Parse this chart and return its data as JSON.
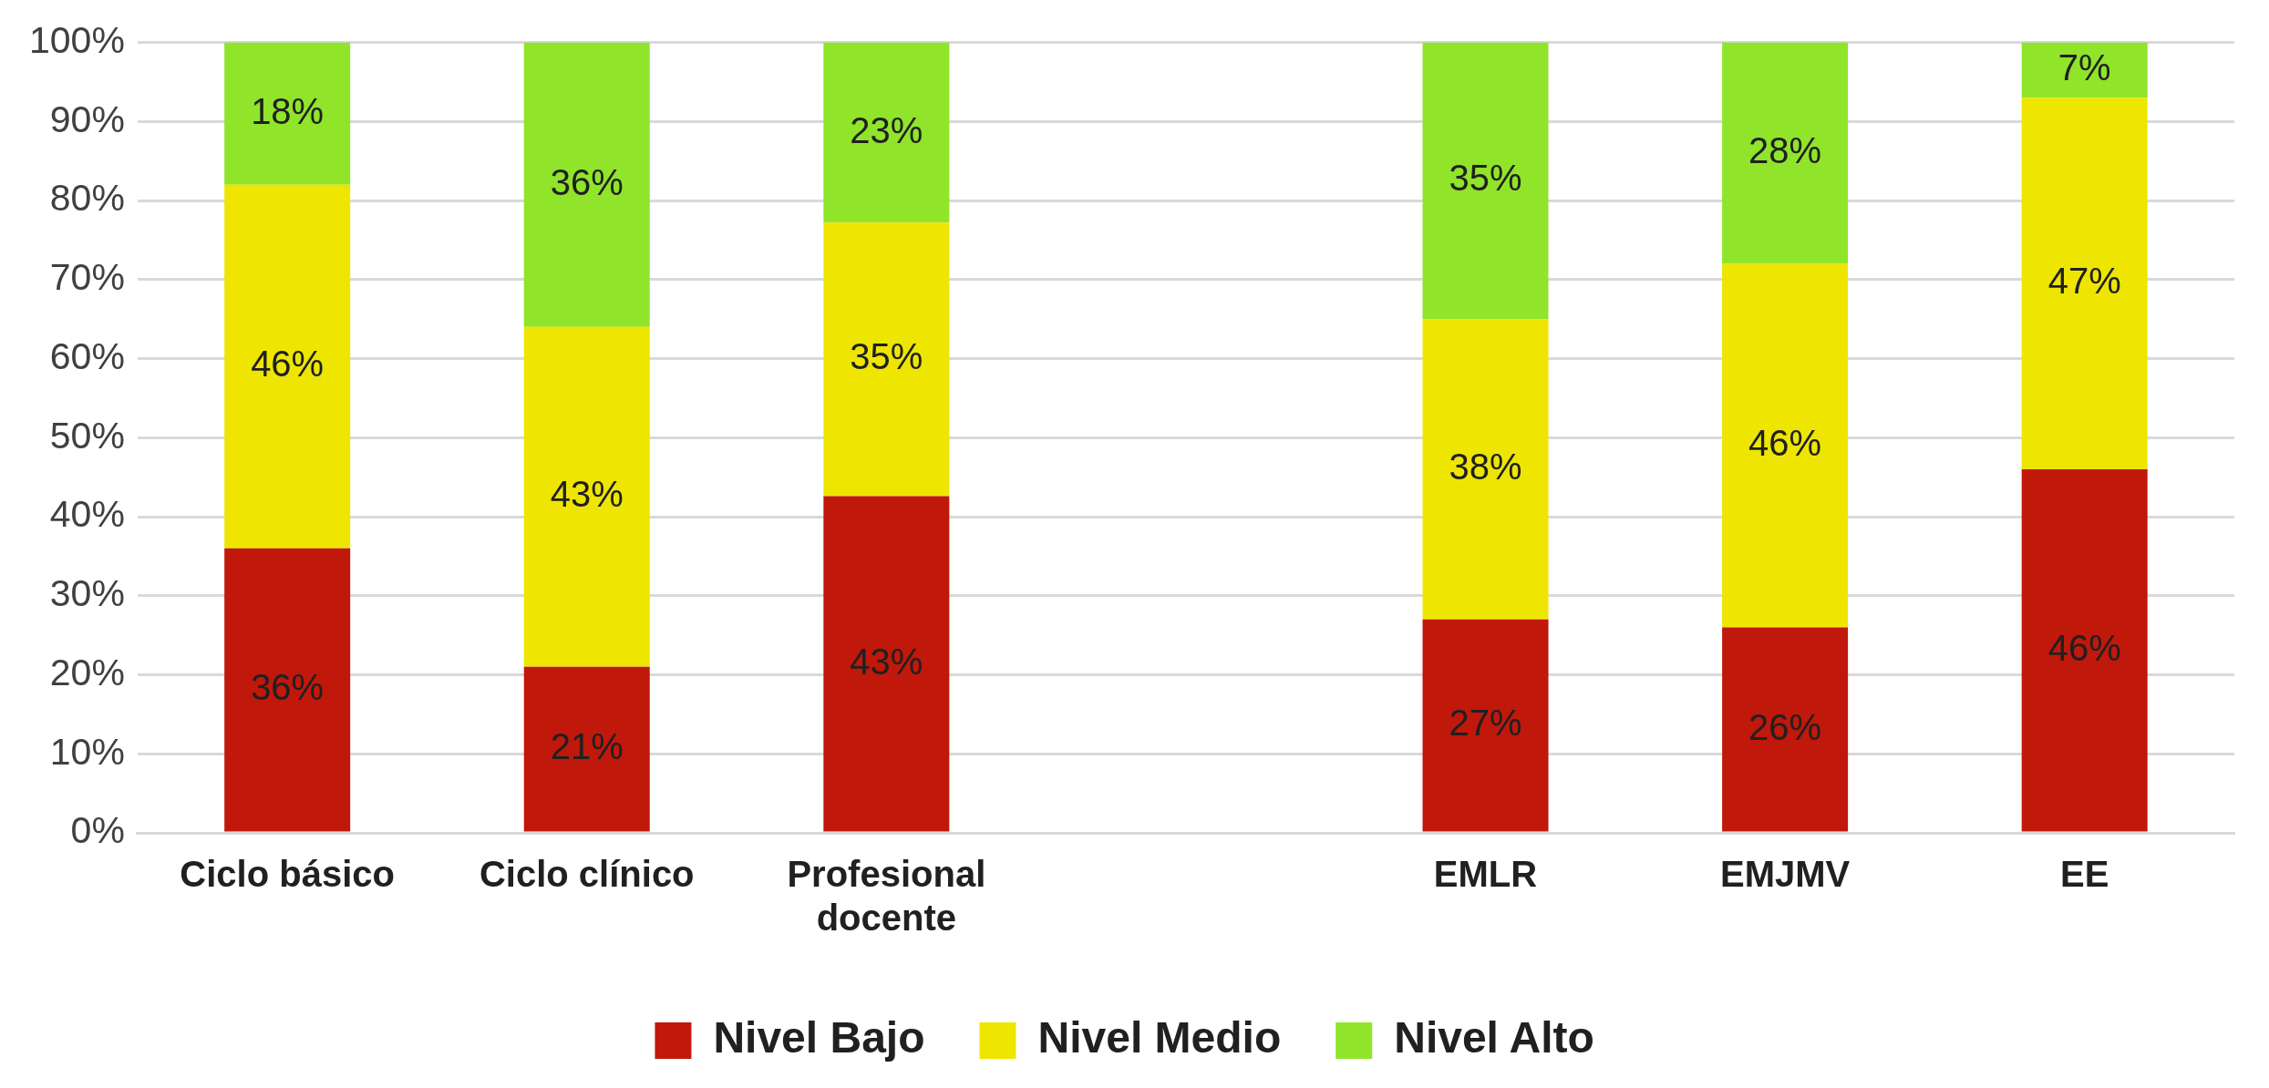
{
  "chart_data": {
    "type": "bar",
    "stacked": true,
    "categories": [
      "Ciclo básico",
      "Ciclo clínico",
      "Profesional docente",
      null,
      "EMLR",
      "EMJMV",
      "EE"
    ],
    "series": [
      {
        "name": "Nivel Bajo",
        "color": "#c0180a",
        "values": [
          36,
          21,
          42.6,
          null,
          27,
          26,
          46
        ],
        "value_labels": [
          "36%",
          "21%",
          "43%",
          null,
          "27%",
          "26%",
          "46%"
        ]
      },
      {
        "name": "Nivel Medio",
        "color": "#eee600",
        "values": [
          46,
          43,
          34.6,
          null,
          38,
          46,
          47
        ],
        "value_labels": [
          "46%",
          "43%",
          "35%",
          null,
          "38%",
          "46%",
          "47%"
        ]
      },
      {
        "name": "Nivel Alto",
        "color": "#90e42a",
        "values": [
          18,
          36,
          22.8,
          null,
          35,
          28,
          7
        ],
        "value_labels": [
          "18%",
          "36%",
          "23%",
          null,
          "35%",
          "28%",
          "7%"
        ]
      }
    ],
    "ylim": [
      0,
      100
    ],
    "yticks": [
      {
        "value": 0,
        "label": "0%"
      },
      {
        "value": 10,
        "label": "10%"
      },
      {
        "value": 20,
        "label": "20%"
      },
      {
        "value": 30,
        "label": "30%"
      },
      {
        "value": 40,
        "label": "40%"
      },
      {
        "value": 50,
        "label": "50%"
      },
      {
        "value": 60,
        "label": "60%"
      },
      {
        "value": 70,
        "label": "70%"
      },
      {
        "value": 80,
        "label": "80%"
      },
      {
        "value": 90,
        "label": "90%"
      },
      {
        "value": 100,
        "label": "100%"
      }
    ],
    "grid": "y",
    "legend": "bottom"
  }
}
